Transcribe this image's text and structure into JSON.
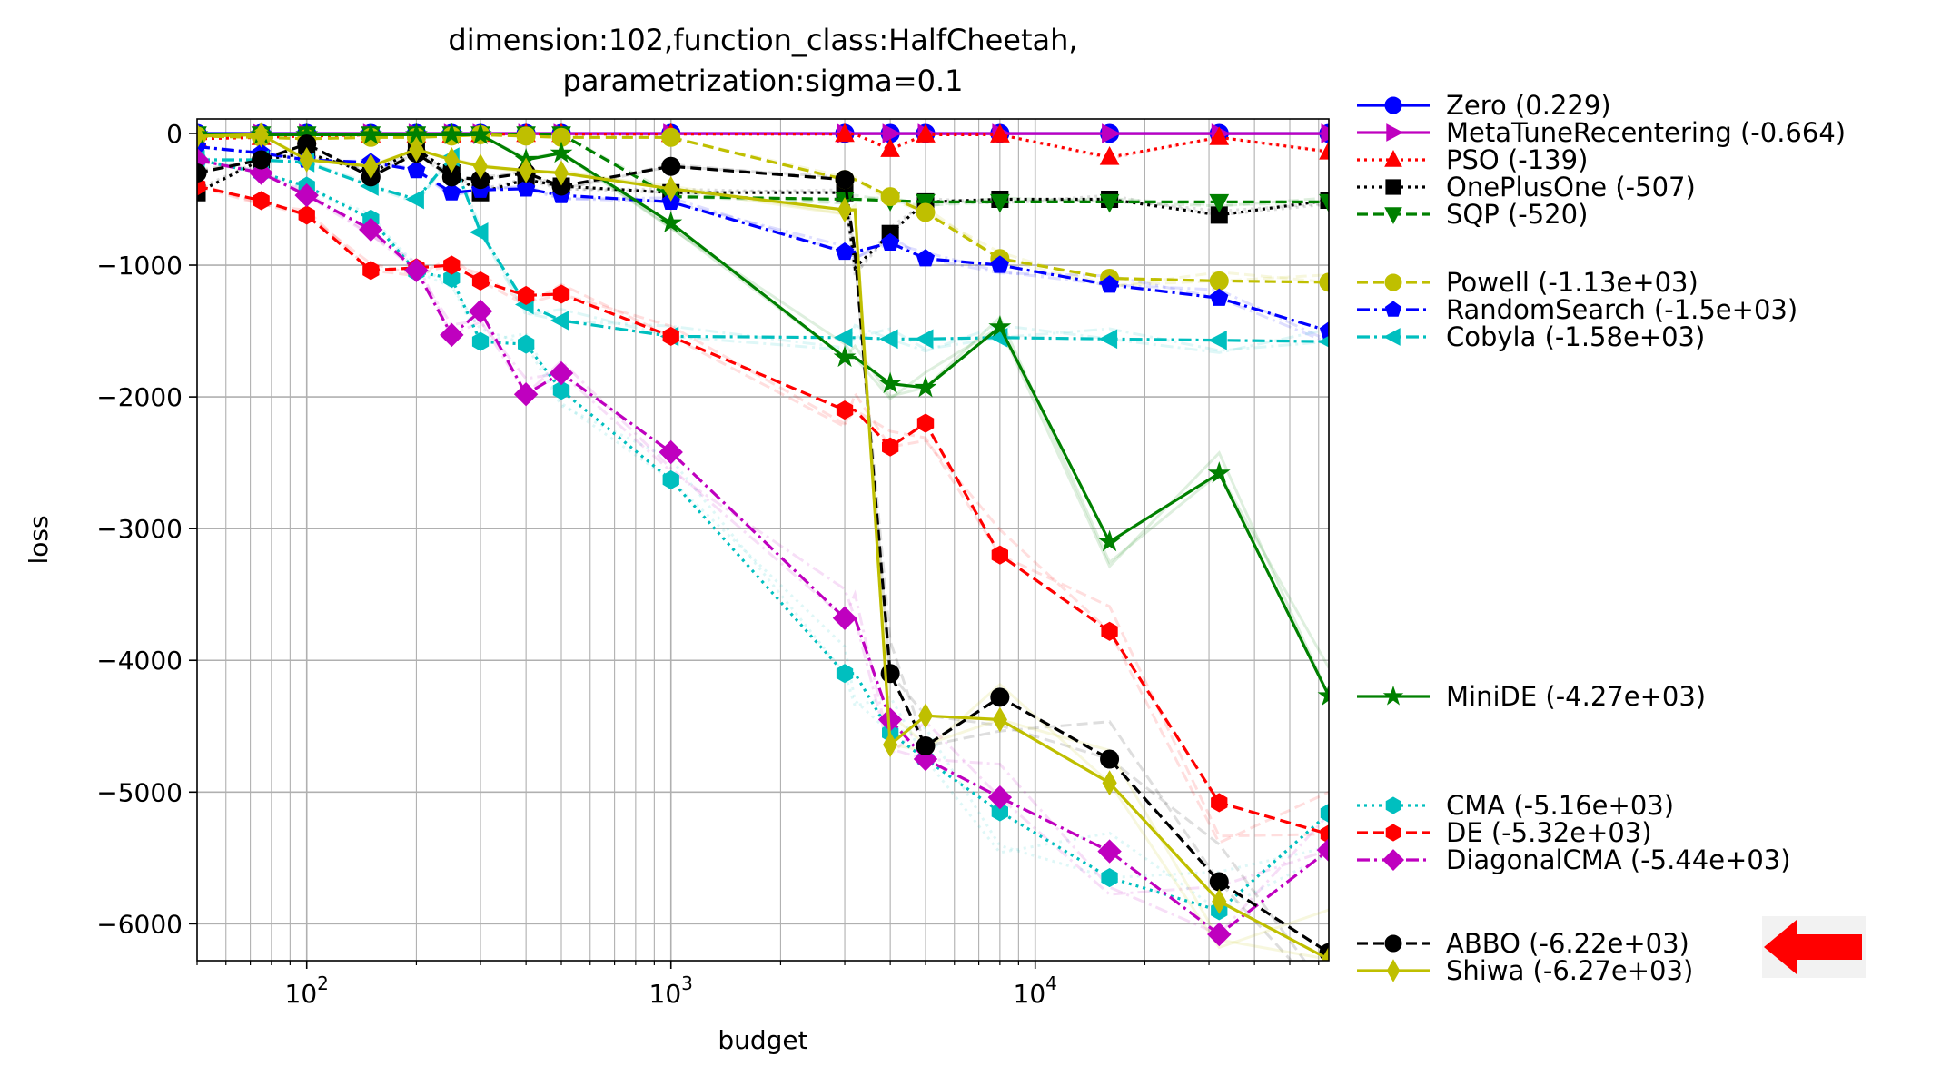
{
  "chart_data": {
    "type": "line",
    "title": "dimension:102,function_class:HalfCheetah,\nparametrization:sigma=0.1",
    "title_lines": [
      "dimension:102,function_class:HalfCheetah,",
      "parametrization:sigma=0.1"
    ],
    "xlabel": "budget",
    "ylabel": "loss",
    "xscale": "log",
    "xlim": [
      50,
      64000
    ],
    "ylim": [
      -6280,
      110
    ],
    "grid": true,
    "legend_position": "right-outside",
    "x_tick_labels": [
      "10^2",
      "10^3",
      "10^4"
    ],
    "y_ticks": [
      0,
      -1000,
      -2000,
      -3000,
      -4000,
      -5000,
      -6000
    ],
    "y_tick_labels": [
      "0",
      "−1000",
      "−2000",
      "−3000",
      "−4000",
      "−5000",
      "−6000"
    ],
    "x": [
      50,
      75,
      100,
      150,
      200,
      250,
      300,
      400,
      500,
      1000,
      3000,
      3200,
      4000,
      5000,
      8000,
      16000,
      32000,
      64000
    ],
    "series": [
      {
        "name": "Zero",
        "label": "Zero (0.229)",
        "color": "#0000ff",
        "linestyle": "solid",
        "marker": "circle",
        "values": [
          0,
          0,
          0,
          0,
          0,
          0,
          0,
          0,
          0,
          0,
          0,
          0,
          0,
          0,
          0,
          0,
          0,
          0
        ]
      },
      {
        "name": "MetaTuneRecentering",
        "label": "MetaTuneRecentering (-0.664)",
        "color": "#bf00bf",
        "linestyle": "solid",
        "marker": "triangle-right",
        "values": [
          -5,
          -3,
          -2,
          -1,
          -1,
          -1,
          -1,
          -1,
          -1,
          -1,
          -1,
          -1,
          -1,
          -1,
          -1,
          -1,
          -1,
          -1
        ]
      },
      {
        "name": "PSO",
        "label": "PSO (-139)",
        "color": "#ff0000",
        "linestyle": "dotted",
        "marker": "triangle-up",
        "values": [
          -40,
          -30,
          -20,
          -10,
          -10,
          -10,
          -5,
          -5,
          -5,
          -5,
          -5,
          -5,
          -120,
          -10,
          -10,
          -180,
          -30,
          -139
        ]
      },
      {
        "name": "OnePlusOne",
        "label": "OnePlusOne (-507)",
        "color": "#000000",
        "linestyle": "dotted",
        "marker": "square",
        "values": [
          -450,
          -200,
          -150,
          -300,
          -120,
          -300,
          -450,
          -350,
          -400,
          -450,
          -450,
          -1020,
          -760,
          -520,
          -500,
          -500,
          -620,
          -507
        ]
      },
      {
        "name": "SQP",
        "label": "SQP (-520)",
        "color": "#008000",
        "linestyle": "dashed",
        "marker": "triangle-down",
        "values": [
          -5,
          -5,
          -5,
          -5,
          -5,
          -5,
          -5,
          -5,
          -5,
          -480,
          -500,
          -500,
          -510,
          -520,
          -520,
          -520,
          -520,
          -520
        ]
      },
      {
        "name": "Powell",
        "label": "Powell (-1.13e+03)",
        "color": "#bfbf00",
        "linestyle": "dashed",
        "marker": "circle",
        "values": [
          -20,
          -30,
          -40,
          -30,
          -30,
          -20,
          -10,
          -20,
          -30,
          -30,
          -350,
          -350,
          -480,
          -600,
          -950,
          -1100,
          -1120,
          -1130
        ]
      },
      {
        "name": "RandomSearch",
        "label": "RandomSearch (-1.5e+03)",
        "color": "#0000ff",
        "linestyle": "dashdot",
        "marker": "pentagon",
        "values": [
          -100,
          -150,
          -200,
          -220,
          -280,
          -450,
          -430,
          -420,
          -470,
          -520,
          -900,
          -900,
          -830,
          -950,
          -1000,
          -1150,
          -1250,
          -1500
        ]
      },
      {
        "name": "Cobyla",
        "label": "Cobyla (-1.58e+03)",
        "color": "#00bfbf",
        "linestyle": "dashdot",
        "marker": "triangle-left",
        "values": [
          -200,
          -200,
          -220,
          -400,
          -500,
          -180,
          -750,
          -1300,
          -1420,
          -1540,
          -1550,
          -1550,
          -1560,
          -1560,
          -1550,
          -1560,
          -1570,
          -1580
        ]
      },
      {
        "name": "MiniDE",
        "label": "MiniDE (-4.27e+03)",
        "color": "#008000",
        "linestyle": "solid",
        "marker": "star",
        "values": [
          -10,
          -10,
          -10,
          -10,
          -10,
          -10,
          -10,
          -200,
          -150,
          -680,
          -1700,
          -1700,
          -1900,
          -1930,
          -1470,
          -3100,
          -2580,
          -4270
        ]
      },
      {
        "name": "CMA",
        "label": "CMA (-5.16e+03)",
        "color": "#00bfbf",
        "linestyle": "dotted",
        "marker": "hexagon",
        "values": [
          -200,
          -300,
          -400,
          -650,
          -1050,
          -1100,
          -1580,
          -1600,
          -1950,
          -2630,
          -4100,
          -4100,
          -4550,
          -4750,
          -5150,
          -5650,
          -5900,
          -5160
        ]
      },
      {
        "name": "DE",
        "label": "DE (-5.32e+03)",
        "color": "#ff0000",
        "linestyle": "dashed",
        "marker": "hexagon",
        "values": [
          -400,
          -510,
          -620,
          -1040,
          -1020,
          -1000,
          -1120,
          -1230,
          -1220,
          -1540,
          -2100,
          -2100,
          -2380,
          -2200,
          -3200,
          -3780,
          -5080,
          -5320
        ]
      },
      {
        "name": "DiagonalCMA",
        "label": "DiagonalCMA (-5.44e+03)",
        "color": "#bf00bf",
        "linestyle": "dashdot",
        "marker": "diamond",
        "values": [
          -200,
          -300,
          -470,
          -730,
          -1040,
          -1530,
          -1350,
          -1980,
          -1820,
          -2420,
          -3680,
          -3680,
          -4450,
          -4750,
          -5040,
          -5450,
          -6080,
          -5440
        ]
      },
      {
        "name": "ABBO",
        "label": "ABBO (-6.22e+03)",
        "color": "#000000",
        "linestyle": "dashed",
        "marker": "circle",
        "values": [
          -300,
          -200,
          -80,
          -330,
          -150,
          -330,
          -350,
          -300,
          -400,
          -250,
          -350,
          -900,
          -4100,
          -4650,
          -4280,
          -4750,
          -5680,
          -6220
        ]
      },
      {
        "name": "Shiwa",
        "label": "Shiwa (-6.27e+03)",
        "color": "#bfbf00",
        "linestyle": "solid",
        "marker": "thin-diamond",
        "values": [
          -20,
          -10,
          -200,
          -250,
          -120,
          -200,
          -250,
          -280,
          -300,
          -420,
          -580,
          -580,
          -4640,
          -4420,
          -4450,
          -4930,
          -5830,
          -6270
        ]
      }
    ],
    "legend_groups": [
      [
        "Zero",
        "MetaTuneRecentering",
        "PSO",
        "OnePlusOne",
        "SQP"
      ],
      [
        "Powell",
        "RandomSearch",
        "Cobyla"
      ],
      [
        "MiniDE"
      ],
      [
        "CMA",
        "DE",
        "DiagonalCMA"
      ],
      [
        "ABBO",
        "Shiwa"
      ]
    ],
    "highlight_arrow_target": "ABBO",
    "arrow_color": "#ff0000"
  }
}
